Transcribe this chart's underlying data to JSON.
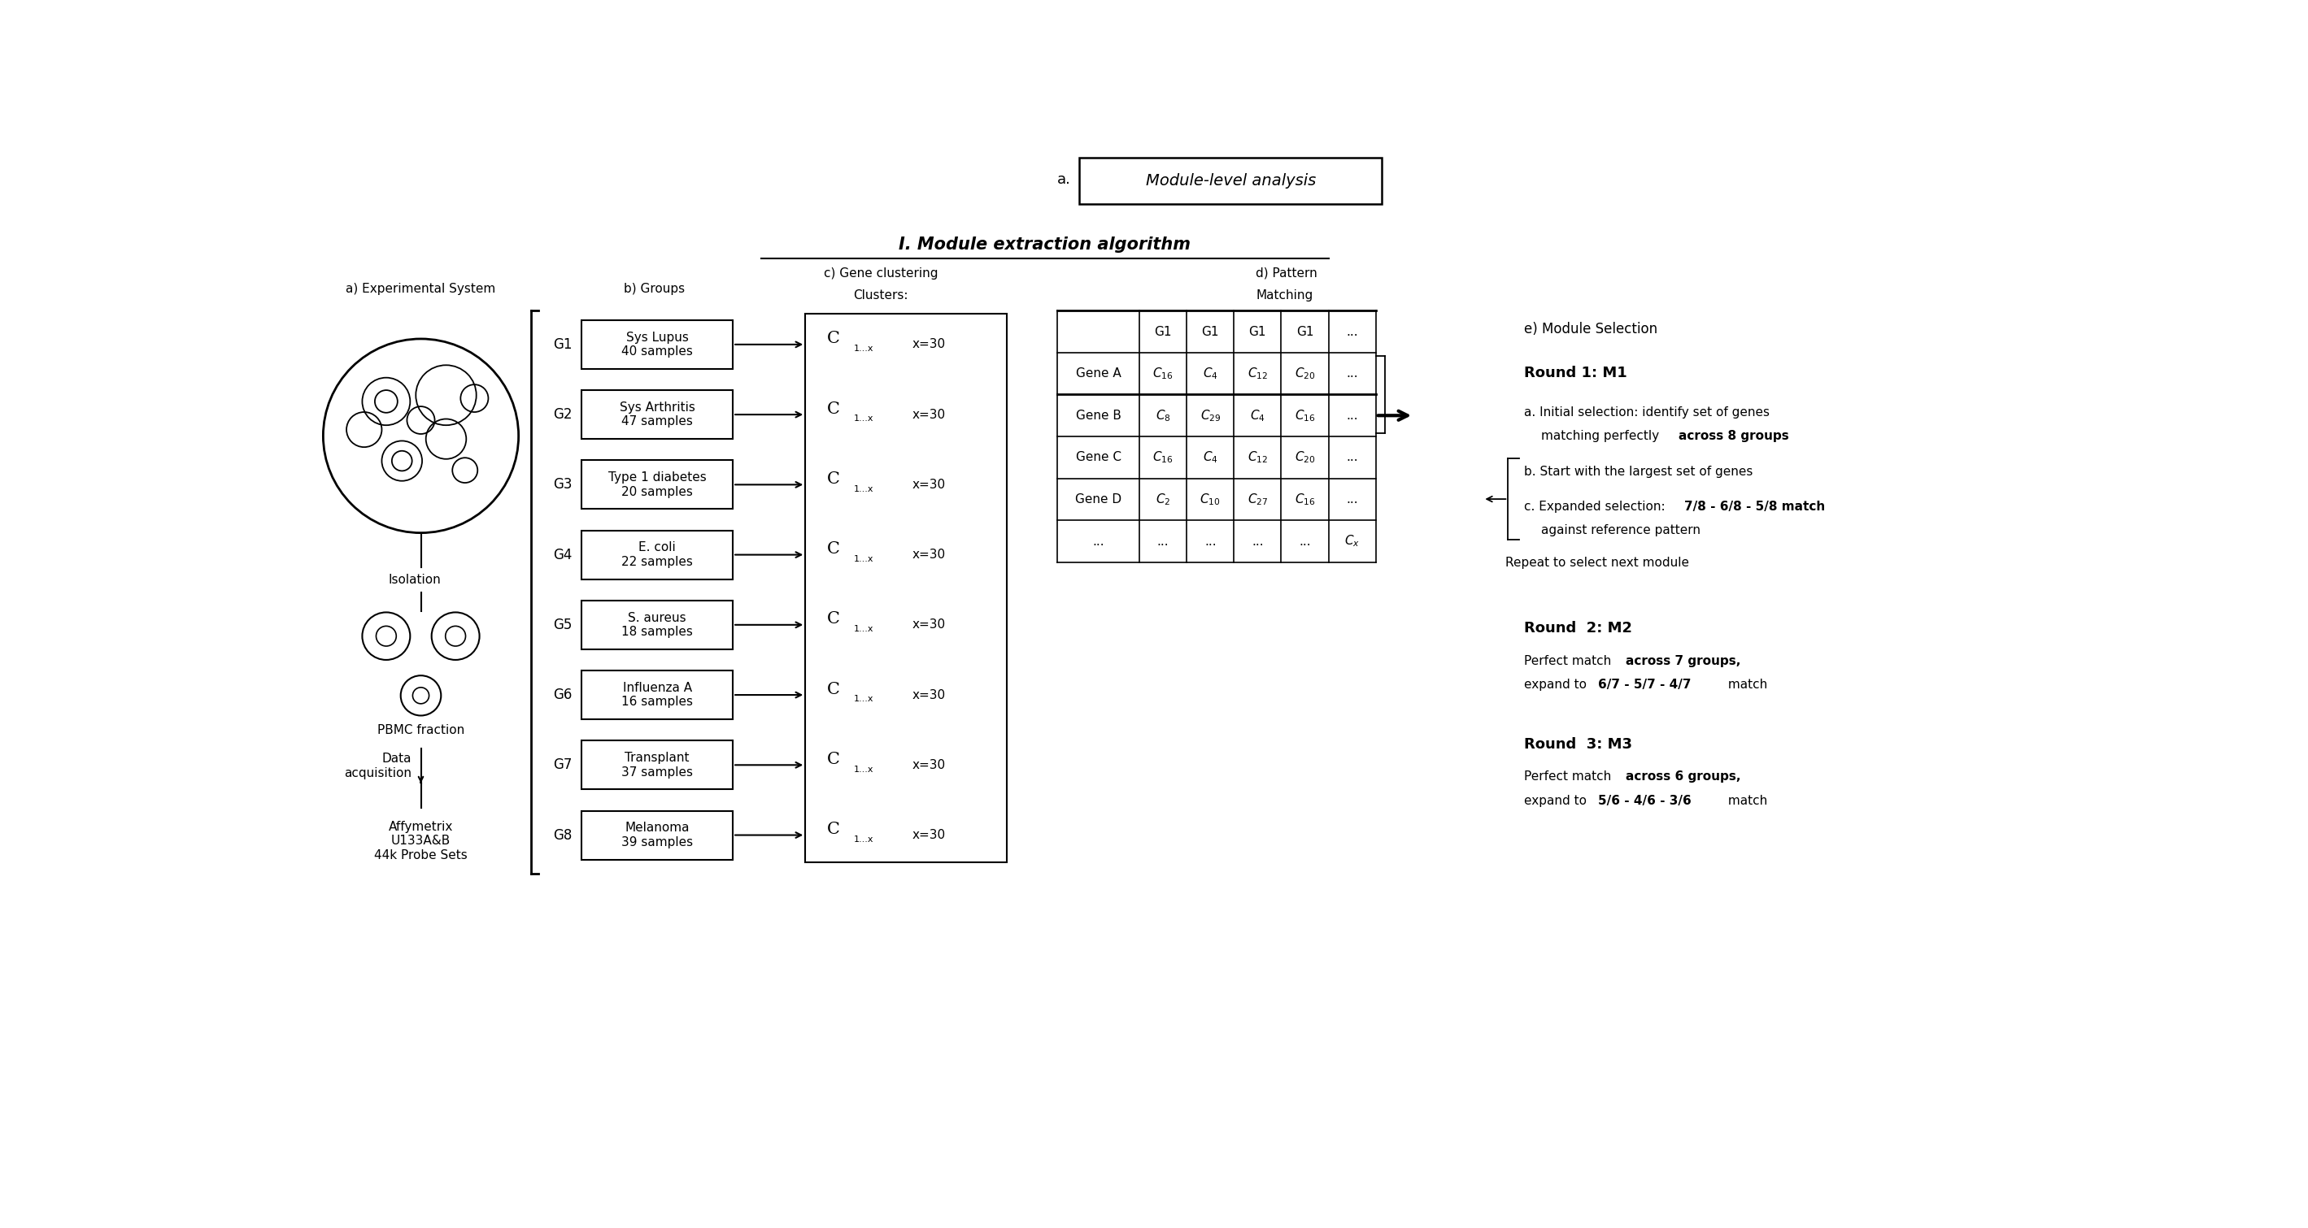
{
  "groups": [
    {
      "label": "G1",
      "name": "Sys Lupus\n40 samples"
    },
    {
      "label": "G2",
      "name": "Sys Arthritis\n47 samples"
    },
    {
      "label": "G3",
      "name": "Type 1 diabetes\n20 samples"
    },
    {
      "label": "G4",
      "name": "E. coli\n22 samples"
    },
    {
      "label": "G5",
      "name": "S. aureus\n18 samples"
    },
    {
      "label": "G6",
      "name": "Influenza A\n16 samples"
    },
    {
      "label": "G7",
      "name": "Transplant\n37 samples"
    },
    {
      "label": "G8",
      "name": "Melanoma\n39 samples"
    }
  ],
  "bg_color": "#ffffff"
}
